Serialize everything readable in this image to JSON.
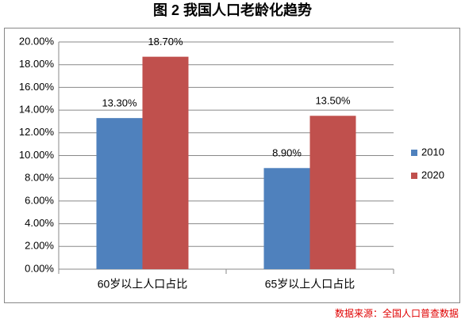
{
  "chart_data": {
    "type": "bar",
    "title": "图 2 我国人口老龄化趋势",
    "categories": [
      "60岁以上人口占比",
      "65岁以上人口占比"
    ],
    "series": [
      {
        "name": "2010",
        "color": "#4f81bd",
        "values": [
          13.3,
          8.9
        ],
        "value_labels": [
          "13.30%",
          "8.90%"
        ]
      },
      {
        "name": "2020",
        "color": "#c0504d",
        "values": [
          18.7,
          13.5
        ],
        "value_labels": [
          "18.70%",
          "13.50%"
        ]
      }
    ],
    "ylim": [
      0,
      20
    ],
    "yticks": [
      {
        "value": 0,
        "label": "0.00%"
      },
      {
        "value": 2,
        "label": "2.00%"
      },
      {
        "value": 4,
        "label": "4.00%"
      },
      {
        "value": 6,
        "label": "6.00%"
      },
      {
        "value": 8,
        "label": "8.00%"
      },
      {
        "value": 10,
        "label": "10.00%"
      },
      {
        "value": 12,
        "label": "12.00%"
      },
      {
        "value": 14,
        "label": "14.00%"
      },
      {
        "value": 16,
        "label": "16.00%"
      },
      {
        "value": 18,
        "label": "18.00%"
      },
      {
        "value": 20,
        "label": "20.00%"
      }
    ],
    "grid": true,
    "legend": "right",
    "source": "数据来源：全国人口普查数据"
  }
}
